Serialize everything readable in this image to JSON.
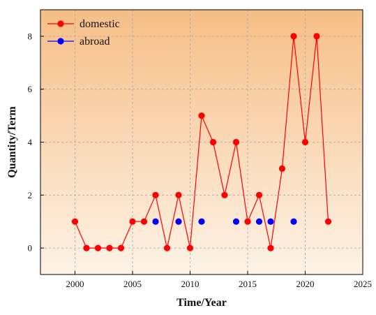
{
  "chart_data": {
    "type": "line",
    "xlabel": "Time/Year",
    "ylabel": "Quantity/Term",
    "xlim": [
      1997,
      2025
    ],
    "ylim": [
      -1,
      9
    ],
    "xticks": [
      2000,
      2005,
      2010,
      2015,
      2020,
      2025
    ],
    "yticks": [
      0,
      2,
      4,
      6,
      8
    ],
    "grid": true,
    "legend": "top-left",
    "background_gradient": [
      "#f6be86",
      "#fdf3e7"
    ],
    "series": [
      {
        "name": "domestic",
        "color": "#ff0000",
        "line": true,
        "x": [
          2000,
          2001,
          2002,
          2003,
          2004,
          2005,
          2006,
          2007,
          2008,
          2009,
          2010,
          2011,
          2012,
          2013,
          2014,
          2015,
          2016,
          2017,
          2018,
          2019,
          2020,
          2021,
          2022
        ],
        "y": [
          1,
          0,
          0,
          0,
          0,
          1,
          1,
          2,
          0,
          2,
          0,
          5,
          4,
          2,
          4,
          1,
          2,
          0,
          3,
          8,
          4,
          8,
          1
        ]
      },
      {
        "name": "abroad",
        "color": "#0000ff",
        "line": false,
        "x": [
          2007,
          2009,
          2011,
          2014,
          2016,
          2017,
          2019
        ],
        "y": [
          1,
          1,
          1,
          1,
          1,
          1,
          1
        ]
      }
    ]
  }
}
